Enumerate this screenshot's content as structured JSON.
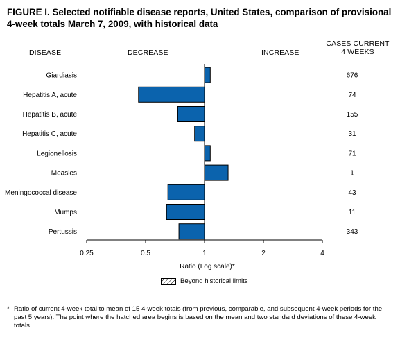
{
  "title": "FIGURE I. Selected notifiable disease reports, United States, comparison of provisional 4-week totals March 7, 2009, with historical data",
  "headers": {
    "disease": "DISEASE",
    "decrease": "DECREASE",
    "increase": "INCREASE",
    "cases_line1": "CASES CURRENT",
    "cases_line2": "4 WEEKS"
  },
  "chart_data": {
    "type": "bar",
    "orientation": "horizontal",
    "x_scale": "log",
    "xlabel": "Ratio (Log scale)*",
    "xlim": [
      0.25,
      4
    ],
    "x_ticks": [
      {
        "value": 0.25,
        "label": "0.25"
      },
      {
        "value": 0.5,
        "label": "0.5"
      },
      {
        "value": 1,
        "label": "1"
      },
      {
        "value": 2,
        "label": "2"
      },
      {
        "value": 4,
        "label": "4"
      }
    ],
    "baseline": 1,
    "bar_color": "#0b63ad",
    "categories": [
      "Giardiasis",
      "Hepatitis A, acute",
      "Hepatitis B, acute",
      "Hepatitis C, acute",
      "Legionellosis",
      "Measles",
      "Meningococcal disease",
      "Mumps",
      "Pertussis"
    ],
    "values": [
      1.07,
      0.46,
      0.73,
      0.89,
      1.07,
      1.32,
      0.65,
      0.64,
      0.74
    ],
    "cases": [
      "676",
      "74",
      "155",
      "31",
      "71",
      "1",
      "43",
      "11",
      "343"
    ],
    "legend": [
      {
        "label": "Beyond historical limits",
        "pattern": "hatched"
      }
    ]
  },
  "footnote": {
    "marker": "*",
    "text": "Ratio of current 4-week total to mean of 15 4-week totals (from previous, comparable, and subsequent 4-week periods for the past 5 years). The point where the hatched area begins is based on the mean and two standard deviations of these 4-week totals."
  }
}
